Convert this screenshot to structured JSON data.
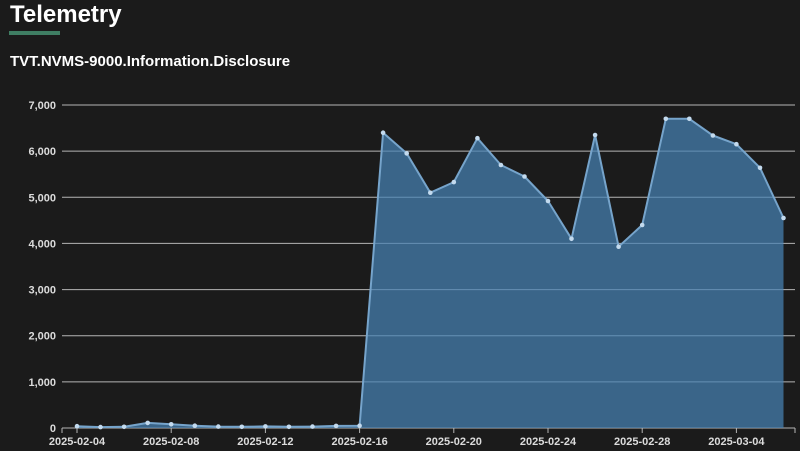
{
  "header": {
    "title": "Telemetry"
  },
  "chart_data": {
    "type": "area",
    "title": "TVT.NVMS-9000.Information.Disclosure",
    "xlabel": "",
    "ylabel": "",
    "ylim": [
      0,
      7000
    ],
    "ytick_step": 1000,
    "xtick_every": 4,
    "grid": true,
    "legend": false,
    "x": [
      "2025-02-04",
      "2025-02-05",
      "2025-02-06",
      "2025-02-07",
      "2025-02-08",
      "2025-02-09",
      "2025-02-10",
      "2025-02-11",
      "2025-02-12",
      "2025-02-13",
      "2025-02-14",
      "2025-02-15",
      "2025-02-16",
      "2025-02-17",
      "2025-02-18",
      "2025-02-19",
      "2025-02-20",
      "2025-02-21",
      "2025-02-22",
      "2025-02-23",
      "2025-02-24",
      "2025-02-25",
      "2025-02-26",
      "2025-02-27",
      "2025-02-28",
      "2025-03-01",
      "2025-03-02",
      "2025-03-03",
      "2025-03-04",
      "2025-03-05",
      "2025-03-06"
    ],
    "values": [
      40,
      20,
      25,
      110,
      80,
      50,
      30,
      25,
      35,
      25,
      30,
      45,
      50,
      6400,
      5950,
      5100,
      5330,
      6280,
      5700,
      5450,
      4920,
      4100,
      6350,
      3930,
      4400,
      6700,
      6700,
      6340,
      6150,
      5640,
      4550
    ],
    "xtick_labels": [
      "2025-02-04",
      "2025-02-08",
      "2025-02-12",
      "2025-02-16",
      "2025-02-20",
      "2025-02-24",
      "2025-02-28",
      "2025-03-04"
    ],
    "colors": {
      "background": "#1b1b1b",
      "accent": "#3f7e63",
      "area_fill": "rgba(70,130,180,0.72)",
      "line": "#76a4cb",
      "marker": "#c3daee",
      "grid": "#b5b5b5",
      "axis_text": "#dcdcdc",
      "title_text": "#ffffff"
    }
  }
}
